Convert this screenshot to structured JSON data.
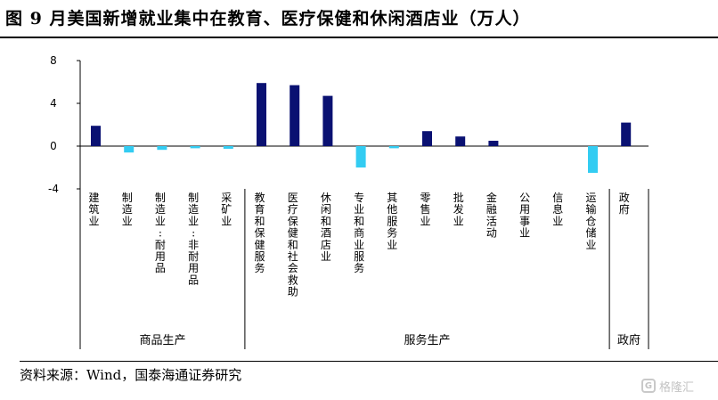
{
  "title": "图   9 月美国新增就业集中在教育、医疗保健和休闲酒店业（万人）",
  "source": "资料来源：Wind，国泰海通证券研究",
  "watermark": "格隆汇",
  "watermark_icon": "G",
  "colors": {
    "positive": "#0a1172",
    "negative": "#33ccf2"
  },
  "chart_data": {
    "type": "bar",
    "title": "9 月美国新增就业集中在教育、医疗保健和休闲酒店业（万人）",
    "xlabel": "",
    "ylabel": "",
    "ylim": [
      -4,
      8
    ],
    "yticks": [
      -4,
      0,
      4,
      8
    ],
    "grid": false,
    "legend": "none",
    "categories": [
      "建筑业",
      "制造业",
      "制造业:耐用品",
      "制造业:非耐用品",
      "采矿业",
      "教育和保健服务",
      "医疗保健和社会救助",
      "休闲和酒店业",
      "专业和商业服务",
      "其他服务业",
      "零售业",
      "批发业",
      "金融活动",
      "公用事业",
      "信息业",
      "运输仓储业",
      "政府"
    ],
    "values": [
      1.9,
      -0.6,
      -0.35,
      -0.2,
      -0.25,
      5.9,
      5.7,
      4.7,
      -2.0,
      -0.2,
      1.4,
      0.9,
      0.5,
      0.0,
      0.0,
      -2.5,
      2.2
    ],
    "groups": [
      {
        "name": "商品生产",
        "start": 0,
        "end": 4
      },
      {
        "name": "服务生产",
        "start": 5,
        "end": 15
      },
      {
        "name": "政府",
        "start": 16,
        "end": 16
      }
    ]
  }
}
